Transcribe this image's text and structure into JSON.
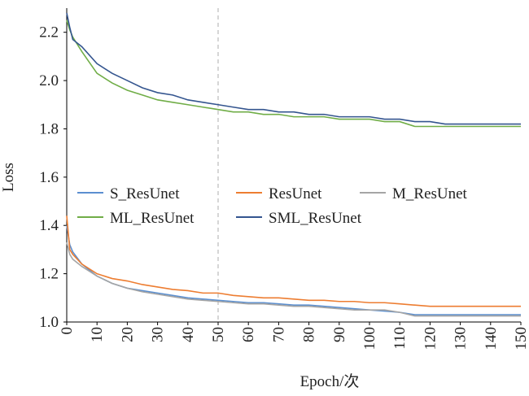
{
  "chart_data": {
    "type": "line",
    "xlabel": "Epoch/次",
    "ylabel": "Loss",
    "x": [
      0,
      1,
      2,
      5,
      10,
      15,
      20,
      25,
      30,
      35,
      40,
      45,
      50,
      55,
      60,
      65,
      70,
      75,
      80,
      85,
      90,
      95,
      100,
      105,
      110,
      115,
      120,
      125,
      130,
      135,
      140,
      145,
      150
    ],
    "series": [
      {
        "name": "S_ResUnet",
        "color": "#5b8fd0",
        "values": [
          1.4,
          1.32,
          1.29,
          1.24,
          1.19,
          1.16,
          1.14,
          1.13,
          1.12,
          1.11,
          1.1,
          1.095,
          1.09,
          1.085,
          1.08,
          1.08,
          1.075,
          1.07,
          1.07,
          1.065,
          1.06,
          1.055,
          1.05,
          1.045,
          1.04,
          1.03,
          1.03,
          1.03,
          1.03,
          1.03,
          1.03,
          1.03,
          1.03
        ]
      },
      {
        "name": "ResUnet",
        "color": "#ed7d31",
        "values": [
          1.44,
          1.3,
          1.28,
          1.24,
          1.2,
          1.18,
          1.17,
          1.155,
          1.145,
          1.135,
          1.13,
          1.12,
          1.12,
          1.11,
          1.105,
          1.1,
          1.1,
          1.095,
          1.09,
          1.09,
          1.085,
          1.085,
          1.08,
          1.08,
          1.075,
          1.07,
          1.065,
          1.065,
          1.065,
          1.065,
          1.065,
          1.065,
          1.065
        ]
      },
      {
        "name": "M_ResUnet",
        "color": "#a5a5a5",
        "values": [
          1.33,
          1.28,
          1.26,
          1.23,
          1.19,
          1.16,
          1.14,
          1.125,
          1.115,
          1.105,
          1.095,
          1.09,
          1.085,
          1.08,
          1.075,
          1.075,
          1.07,
          1.065,
          1.065,
          1.06,
          1.055,
          1.05,
          1.05,
          1.05,
          1.04,
          1.025,
          1.025,
          1.025,
          1.025,
          1.025,
          1.025,
          1.025,
          1.025
        ]
      },
      {
        "name": "ML_ResUnet",
        "color": "#70ad47",
        "values": [
          2.25,
          2.21,
          2.18,
          2.12,
          2.03,
          1.99,
          1.96,
          1.94,
          1.92,
          1.91,
          1.9,
          1.89,
          1.88,
          1.87,
          1.87,
          1.86,
          1.86,
          1.85,
          1.85,
          1.85,
          1.84,
          1.84,
          1.84,
          1.83,
          1.83,
          1.81,
          1.81,
          1.81,
          1.81,
          1.81,
          1.81,
          1.81,
          1.81
        ]
      },
      {
        "name": "SML_ResUnet",
        "color": "#34558f",
        "values": [
          2.28,
          2.22,
          2.17,
          2.14,
          2.07,
          2.03,
          2.0,
          1.97,
          1.95,
          1.94,
          1.92,
          1.91,
          1.9,
          1.89,
          1.88,
          1.88,
          1.87,
          1.87,
          1.86,
          1.86,
          1.85,
          1.85,
          1.85,
          1.84,
          1.84,
          1.83,
          1.83,
          1.82,
          1.82,
          1.82,
          1.82,
          1.82,
          1.82
        ]
      }
    ],
    "xlim": [
      0,
      150
    ],
    "xticks": [
      0,
      10,
      20,
      30,
      40,
      50,
      60,
      70,
      80,
      90,
      100,
      110,
      120,
      130,
      140,
      150
    ],
    "ylim": [
      1.0,
      2.3
    ],
    "yticks": [
      {
        "value": 1.0,
        "label": "1.0"
      },
      1.2,
      1.4,
      1.6,
      1.8,
      {
        "value": 2.0,
        "label": "2.0"
      },
      2.2
    ],
    "vlines": [
      50
    ],
    "grid": false,
    "legend": "center-left"
  }
}
